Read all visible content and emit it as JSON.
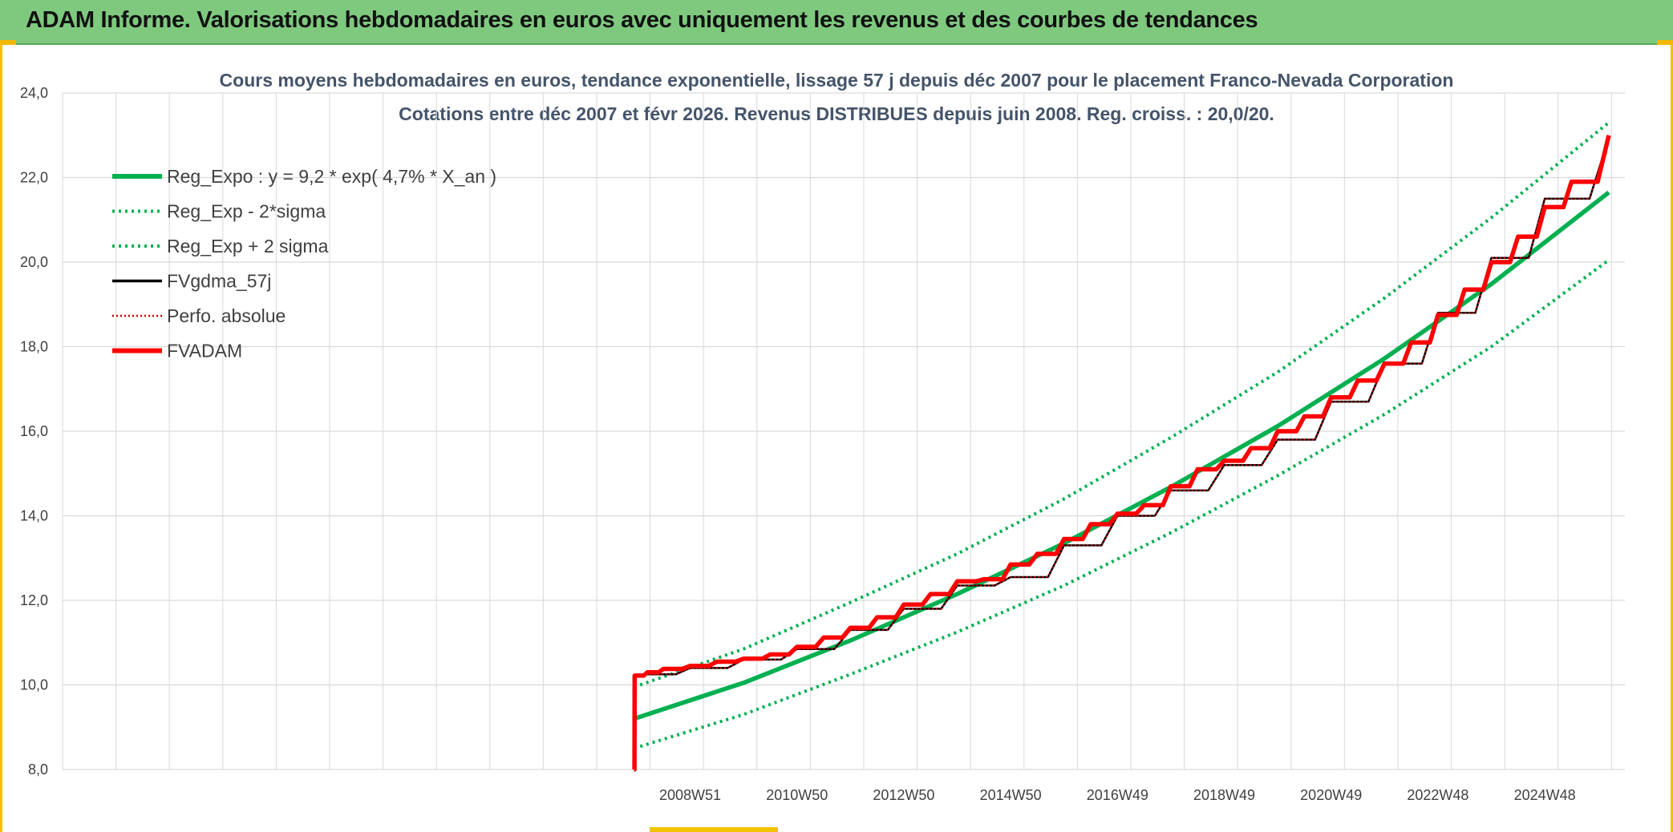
{
  "header": {
    "title": "ADAM Informe. Valorisations hebdomadaires en euros avec uniquement les revenus et des courbes de tendances"
  },
  "colors": {
    "header_bg": "#7fc97f",
    "trend": "#00b050",
    "fvgdma": "#000000",
    "fvadam": "#ff0000",
    "perfo": "#c00000",
    "grid": "#d9d9d9"
  },
  "chart_data": {
    "type": "line",
    "title_line1": "Cours moyens hebdomadaires en euros, tendance exponentielle, lissage 57 j depuis déc 2007 pour le placement Franco-Nevada Corporation",
    "title_line2": "Cotations entre déc 2007 et févr 2026. Revenus DISTRIBUES depuis juin 2008. Reg. croiss. : 20,0/20.",
    "ylim": [
      8,
      24
    ],
    "yticks": [
      "8,0",
      "10,0",
      "12,0",
      "14,0",
      "16,0",
      "18,0",
      "20,0",
      "22,0",
      "24,0"
    ],
    "xticks": [
      "2008W51",
      "2010W50",
      "2012W50",
      "2014W50",
      "2016W49",
      "2018W49",
      "2020W49",
      "2022W48",
      "2024W48"
    ],
    "xlim_years": [
      1997.25,
      2026.5
    ],
    "legend": [
      "Reg_Expo : y = 9,2 * exp( 4,7% *  X_an )",
      "Reg_Exp - 2*sigma",
      "Reg_Exp + 2 sigma",
      "FVgdma_57j",
      "Perfo. absolue",
      "FVADAM"
    ],
    "series": [
      {
        "name": "Reg_Expo : y = 9,2 * exp( 4,7% *  X_an )",
        "style": "solid-thick",
        "color": "#00b050",
        "x": [
          2007.95,
          2010,
          2012,
          2014,
          2016,
          2018,
          2020,
          2022,
          2024,
          2026.2
        ],
        "y": [
          9.2,
          10.05,
          11.05,
          12.15,
          13.35,
          14.68,
          16.12,
          17.72,
          19.48,
          21.65
        ]
      },
      {
        "name": "Reg_Exp - 2*sigma",
        "style": "dotted",
        "color": "#00b050",
        "x": [
          2007.95,
          2010,
          2012,
          2014,
          2016,
          2018,
          2020,
          2022,
          2024,
          2026.2
        ],
        "y": [
          8.5,
          9.3,
          10.25,
          11.25,
          12.35,
          13.6,
          14.95,
          16.4,
          18.0,
          20.05
        ]
      },
      {
        "name": "Reg_Exp + 2 sigma",
        "style": "dotted",
        "color": "#00b050",
        "x": [
          2007.95,
          2010,
          2012,
          2014,
          2016,
          2018,
          2020,
          2022,
          2024,
          2026.2
        ],
        "y": [
          9.95,
          10.85,
          11.95,
          13.1,
          14.4,
          15.85,
          17.4,
          19.15,
          21.05,
          23.3
        ]
      },
      {
        "name": "FVgdma_57j",
        "style": "solid",
        "color": "#000000",
        "x": [
          2007.95,
          2008.1,
          2009,
          2010,
          2011,
          2012,
          2013,
          2014,
          2015,
          2016,
          2017,
          2018,
          2019,
          2020,
          2021,
          2022,
          2023,
          2024,
          2025,
          2026.2
        ],
        "y": [
          10.2,
          10.25,
          10.4,
          10.6,
          10.85,
          11.3,
          11.8,
          12.35,
          12.55,
          13.3,
          14.0,
          14.6,
          15.2,
          15.8,
          16.7,
          17.6,
          18.8,
          20.1,
          21.5,
          22.95
        ]
      },
      {
        "name": "Perfo. absolue",
        "style": "dotted",
        "color": "#c00000",
        "x": [
          2007.95,
          2008.1,
          2009,
          2010,
          2011,
          2012,
          2013,
          2014,
          2015,
          2016,
          2017,
          2018,
          2019,
          2020,
          2021,
          2022,
          2023,
          2024,
          2025,
          2026.2
        ],
        "y": [
          10.2,
          10.25,
          10.4,
          10.6,
          10.85,
          11.3,
          11.8,
          12.35,
          12.55,
          13.3,
          14.0,
          14.6,
          15.2,
          15.8,
          16.7,
          17.6,
          18.8,
          20.1,
          21.5,
          22.95
        ]
      },
      {
        "name": "FVADAM",
        "style": "solid-thick",
        "color": "#ff0000",
        "x": [
          2007.95,
          2007.96,
          2008.2,
          2008.5,
          2009,
          2009.5,
          2010,
          2010.5,
          2011,
          2011.5,
          2012,
          2012.5,
          2013,
          2013.5,
          2014,
          2014.5,
          2015,
          2015.5,
          2016,
          2016.5,
          2017,
          2017.5,
          2018,
          2018.5,
          2019,
          2019.5,
          2020,
          2020.5,
          2021,
          2021.5,
          2022,
          2022.5,
          2023,
          2023.5,
          2024,
          2024.5,
          2025,
          2025.5,
          2026.2
        ],
        "y": [
          8.0,
          10.22,
          10.3,
          10.38,
          10.45,
          10.55,
          10.62,
          10.72,
          10.9,
          11.12,
          11.35,
          11.6,
          11.9,
          12.15,
          12.45,
          12.5,
          12.85,
          13.1,
          13.45,
          13.8,
          14.05,
          14.25,
          14.7,
          15.1,
          15.3,
          15.6,
          16.0,
          16.35,
          16.8,
          17.2,
          17.6,
          18.1,
          18.75,
          19.35,
          20.0,
          20.6,
          21.3,
          21.9,
          23.0
        ]
      }
    ]
  }
}
